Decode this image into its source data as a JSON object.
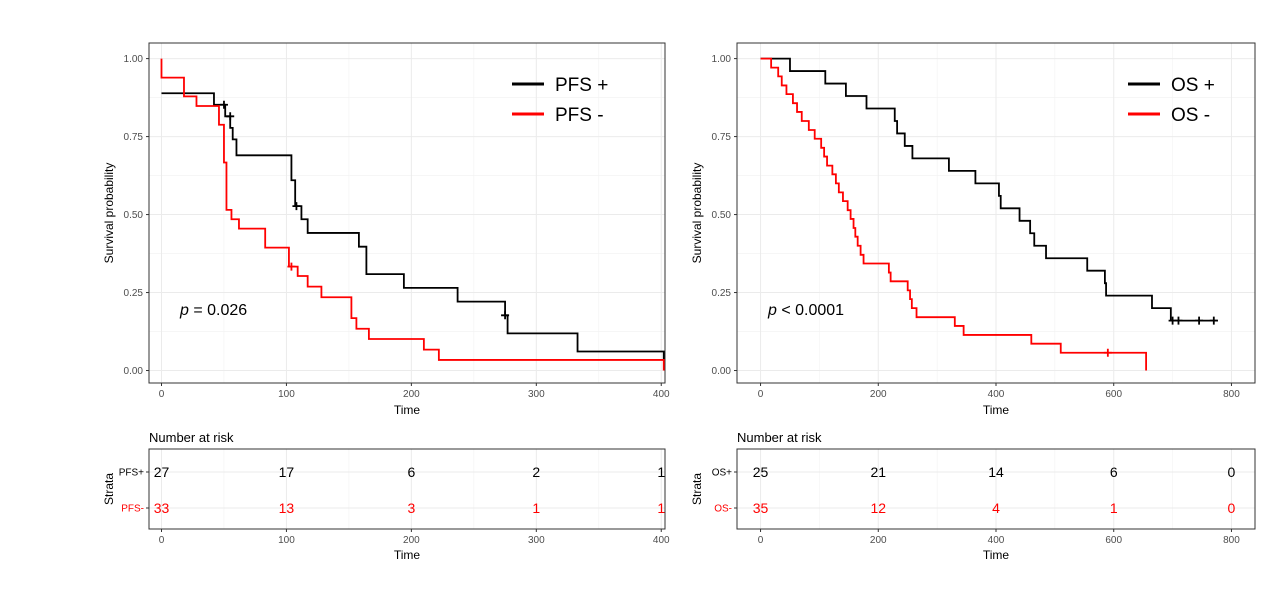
{
  "chart_data": [
    {
      "type": "line",
      "subtype": "kaplan-meier",
      "xlabel": "Time",
      "ylabel": "Survival probability",
      "xlim": [
        -10,
        403
      ],
      "ylim": [
        -0.04,
        1.05
      ],
      "xticks": [
        0,
        100,
        200,
        300,
        400
      ],
      "yticks": [
        0.0,
        0.25,
        0.5,
        0.75,
        1.0
      ],
      "ytick_labels": [
        "0.00",
        "0.25",
        "0.50",
        "0.75",
        "1.00"
      ],
      "grid": true,
      "legend_position": "top-right",
      "pvalue": {
        "prefix": "p",
        "text": " = 0.026"
      },
      "series": [
        {
          "name": "PFS +",
          "color": "#000000",
          "steps": [
            [
              0,
              0.889
            ],
            [
              42,
              0.889
            ],
            [
              42,
              0.852
            ],
            [
              51,
              0.852
            ],
            [
              51,
              0.815
            ],
            [
              55,
              0.815
            ],
            [
              55,
              0.778
            ],
            [
              57,
              0.778
            ],
            [
              57,
              0.741
            ],
            [
              60,
              0.741
            ],
            [
              60,
              0.69
            ],
            [
              104,
              0.69
            ],
            [
              104,
              0.61
            ],
            [
              107,
              0.61
            ],
            [
              107,
              0.527
            ],
            [
              112,
              0.527
            ],
            [
              112,
              0.485
            ],
            [
              117,
              0.485
            ],
            [
              117,
              0.441
            ],
            [
              158,
              0.441
            ],
            [
              158,
              0.397
            ],
            [
              164,
              0.397
            ],
            [
              164,
              0.309
            ],
            [
              194,
              0.309
            ],
            [
              194,
              0.265
            ],
            [
              237,
              0.265
            ],
            [
              237,
              0.221
            ],
            [
              275,
              0.221
            ],
            [
              275,
              0.177
            ],
            [
              277,
              0.177
            ],
            [
              277,
              0.119
            ],
            [
              333,
              0.119
            ],
            [
              333,
              0.061
            ],
            [
              402,
              0.061
            ],
            [
              402,
              0.036
            ]
          ],
          "censors": [
            [
              50,
              0.852
            ],
            [
              55,
              0.815
            ],
            [
              108,
              0.527
            ],
            [
              275,
              0.177
            ]
          ]
        },
        {
          "name": "PFS -",
          "color": "#ff0000",
          "steps": [
            [
              0,
              1.0
            ],
            [
              0,
              0.939
            ],
            [
              18,
              0.939
            ],
            [
              18,
              0.879
            ],
            [
              28,
              0.879
            ],
            [
              28,
              0.848
            ],
            [
              46,
              0.848
            ],
            [
              46,
              0.788
            ],
            [
              50,
              0.788
            ],
            [
              50,
              0.667
            ],
            [
              52,
              0.667
            ],
            [
              52,
              0.515
            ],
            [
              56,
              0.515
            ],
            [
              56,
              0.485
            ],
            [
              62,
              0.485
            ],
            [
              62,
              0.455
            ],
            [
              83,
              0.455
            ],
            [
              83,
              0.394
            ],
            [
              102,
              0.394
            ],
            [
              102,
              0.333
            ],
            [
              109,
              0.333
            ],
            [
              109,
              0.303
            ],
            [
              117,
              0.303
            ],
            [
              117,
              0.269
            ],
            [
              128,
              0.269
            ],
            [
              128,
              0.235
            ],
            [
              152,
              0.235
            ],
            [
              152,
              0.168
            ],
            [
              156,
              0.168
            ],
            [
              156,
              0.134
            ],
            [
              166,
              0.134
            ],
            [
              166,
              0.101
            ],
            [
              210,
              0.101
            ],
            [
              210,
              0.067
            ],
            [
              222,
              0.067
            ],
            [
              222,
              0.034
            ],
            [
              402,
              0.034
            ],
            [
              402,
              0.0
            ]
          ],
          "censors": [
            [
              104,
              0.333
            ]
          ]
        }
      ],
      "risk_table": {
        "header": "Number at risk",
        "ylabel": "Strata",
        "xlabel": "Time",
        "xlim": [
          -10,
          403
        ],
        "xticks": [
          0,
          100,
          200,
          300,
          400
        ],
        "rows": [
          {
            "label": "PFS+",
            "color": "#000000",
            "times": [
              0,
              100,
              200,
              300,
              400
            ],
            "values": [
              27,
              17,
              6,
              2,
              1
            ]
          },
          {
            "label": "PFS-",
            "color": "#ff0000",
            "times": [
              0,
              100,
              200,
              300,
              400
            ],
            "values": [
              33,
              13,
              3,
              1,
              1
            ]
          }
        ]
      }
    },
    {
      "type": "line",
      "subtype": "kaplan-meier",
      "xlabel": "Time",
      "ylabel": "Survival probability",
      "xlim": [
        -40,
        840
      ],
      "ylim": [
        -0.04,
        1.05
      ],
      "xticks": [
        0,
        200,
        400,
        600,
        800
      ],
      "yticks": [
        0.0,
        0.25,
        0.5,
        0.75,
        1.0
      ],
      "ytick_labels": [
        "0.00",
        "0.25",
        "0.50",
        "0.75",
        "1.00"
      ],
      "grid": true,
      "legend_position": "top-right",
      "pvalue": {
        "prefix": "p",
        "text": " < 0.0001"
      },
      "series": [
        {
          "name": "OS +",
          "color": "#000000",
          "steps": [
            [
              0,
              1.0
            ],
            [
              50,
              1.0
            ],
            [
              50,
              0.96
            ],
            [
              110,
              0.96
            ],
            [
              110,
              0.92
            ],
            [
              145,
              0.92
            ],
            [
              145,
              0.88
            ],
            [
              180,
              0.88
            ],
            [
              180,
              0.84
            ],
            [
              228,
              0.84
            ],
            [
              228,
              0.8
            ],
            [
              232,
              0.8
            ],
            [
              232,
              0.76
            ],
            [
              245,
              0.76
            ],
            [
              245,
              0.72
            ],
            [
              258,
              0.72
            ],
            [
              258,
              0.68
            ],
            [
              320,
              0.68
            ],
            [
              320,
              0.64
            ],
            [
              365,
              0.64
            ],
            [
              365,
              0.6
            ],
            [
              405,
              0.6
            ],
            [
              405,
              0.56
            ],
            [
              408,
              0.56
            ],
            [
              408,
              0.52
            ],
            [
              440,
              0.52
            ],
            [
              440,
              0.48
            ],
            [
              458,
              0.48
            ],
            [
              458,
              0.44
            ],
            [
              465,
              0.44
            ],
            [
              465,
              0.4
            ],
            [
              485,
              0.4
            ],
            [
              485,
              0.36
            ],
            [
              555,
              0.36
            ],
            [
              555,
              0.32
            ],
            [
              585,
              0.32
            ],
            [
              585,
              0.28
            ],
            [
              587,
              0.28
            ],
            [
              587,
              0.24
            ],
            [
              665,
              0.24
            ],
            [
              665,
              0.2
            ],
            [
              697,
              0.2
            ],
            [
              697,
              0.16
            ],
            [
              777,
              0.16
            ]
          ],
          "censors": [
            [
              700,
              0.16
            ],
            [
              710,
              0.16
            ],
            [
              745,
              0.16
            ],
            [
              770,
              0.16
            ]
          ]
        },
        {
          "name": "OS -",
          "color": "#ff0000",
          "steps": [
            [
              0,
              1.0
            ],
            [
              18,
              1.0
            ],
            [
              18,
              0.971
            ],
            [
              30,
              0.971
            ],
            [
              30,
              0.943
            ],
            [
              36,
              0.943
            ],
            [
              36,
              0.914
            ],
            [
              44,
              0.914
            ],
            [
              44,
              0.886
            ],
            [
              55,
              0.886
            ],
            [
              55,
              0.857
            ],
            [
              62,
              0.857
            ],
            [
              62,
              0.829
            ],
            [
              70,
              0.829
            ],
            [
              70,
              0.8
            ],
            [
              82,
              0.8
            ],
            [
              82,
              0.771
            ],
            [
              92,
              0.771
            ],
            [
              92,
              0.743
            ],
            [
              103,
              0.743
            ],
            [
              103,
              0.714
            ],
            [
              108,
              0.714
            ],
            [
              108,
              0.686
            ],
            [
              113,
              0.686
            ],
            [
              113,
              0.657
            ],
            [
              122,
              0.657
            ],
            [
              122,
              0.629
            ],
            [
              128,
              0.629
            ],
            [
              128,
              0.6
            ],
            [
              133,
              0.6
            ],
            [
              133,
              0.571
            ],
            [
              140,
              0.571
            ],
            [
              140,
              0.543
            ],
            [
              148,
              0.543
            ],
            [
              148,
              0.514
            ],
            [
              153,
              0.514
            ],
            [
              153,
              0.486
            ],
            [
              158,
              0.486
            ],
            [
              158,
              0.457
            ],
            [
              161,
              0.457
            ],
            [
              161,
              0.429
            ],
            [
              165,
              0.429
            ],
            [
              165,
              0.4
            ],
            [
              170,
              0.4
            ],
            [
              170,
              0.371
            ],
            [
              175,
              0.371
            ],
            [
              175,
              0.343
            ],
            [
              218,
              0.343
            ],
            [
              218,
              0.314
            ],
            [
              221,
              0.314
            ],
            [
              221,
              0.286
            ],
            [
              250,
              0.286
            ],
            [
              250,
              0.257
            ],
            [
              254,
              0.257
            ],
            [
              254,
              0.229
            ],
            [
              257,
              0.229
            ],
            [
              257,
              0.2
            ],
            [
              265,
              0.2
            ],
            [
              265,
              0.171
            ],
            [
              330,
              0.171
            ],
            [
              330,
              0.143
            ],
            [
              345,
              0.143
            ],
            [
              345,
              0.114
            ],
            [
              460,
              0.114
            ],
            [
              460,
              0.086
            ],
            [
              510,
              0.086
            ],
            [
              510,
              0.057
            ],
            [
              655,
              0.057
            ],
            [
              655,
              0.0
            ]
          ],
          "censors": [
            [
              590,
              0.057
            ]
          ]
        }
      ],
      "risk_table": {
        "header": "Number at risk",
        "ylabel": "Strata",
        "xlabel": "Time",
        "xlim": [
          -40,
          840
        ],
        "xticks": [
          0,
          200,
          400,
          600,
          800
        ],
        "rows": [
          {
            "label": "OS+",
            "color": "#000000",
            "times": [
              0,
              200,
              400,
              600,
              800
            ],
            "values": [
              25,
              21,
              14,
              6,
              0
            ]
          },
          {
            "label": "OS-",
            "color": "#ff0000",
            "times": [
              0,
              200,
              400,
              600,
              800
            ],
            "values": [
              35,
              12,
              4,
              1,
              0
            ]
          }
        ]
      }
    }
  ]
}
